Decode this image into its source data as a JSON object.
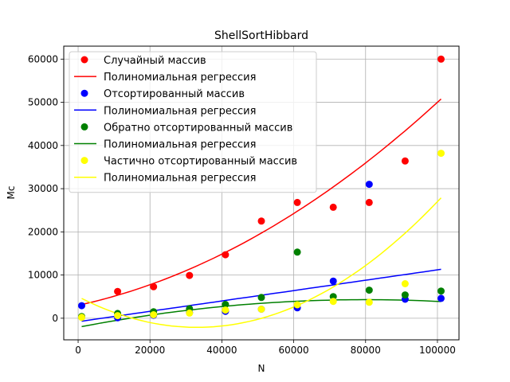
{
  "chart_data": {
    "type": "scatter",
    "title": "ShellSortHibbard",
    "xlabel": "N",
    "ylabel": "Мс",
    "xlim": [
      -4000,
      106000
    ],
    "ylim": [
      -5000,
      63000
    ],
    "xticks": [
      0,
      20000,
      40000,
      60000,
      80000,
      100000
    ],
    "xtick_labels": [
      "0",
      "20000",
      "40000",
      "60000",
      "80000",
      "100000"
    ],
    "yticks": [
      0,
      10000,
      20000,
      30000,
      40000,
      50000,
      60000
    ],
    "ytick_labels": [
      "0",
      "10000",
      "20000",
      "30000",
      "40000",
      "50000",
      "60000"
    ],
    "grid": true,
    "legend_position": "top-left",
    "x": [
      1000,
      11000,
      21000,
      31000,
      41000,
      51000,
      61000,
      71000,
      81000,
      91000,
      101000
    ],
    "series": [
      {
        "name": "Случайный массив",
        "color": "#ff0000",
        "values": [
          300,
          6200,
          7300,
          9900,
          14700,
          22500,
          26800,
          25700,
          26800,
          36400,
          60000
        ],
        "regression_name": "Полиномиальная регрессия",
        "regression_coef": [
          2.9e-06,
          0.18,
          3000
        ]
      },
      {
        "name": "Отсортированный массив",
        "color": "#0000ff",
        "values": [
          2900,
          100,
          700,
          1300,
          1600,
          2100,
          2400,
          8600,
          31000,
          4400,
          4600
        ],
        "regression_name": "Полиномиальная регрессия",
        "regression_coef": [
          0.0,
          0.12,
          -800
        ]
      },
      {
        "name": "Обратно отсортированный массив",
        "color": "#008000",
        "values": [
          400,
          1100,
          1500,
          2200,
          3200,
          4800,
          15300,
          5000,
          6500,
          5400,
          6300
        ],
        "regression_name": "Полиномиальная регрессия",
        "regression_coef": [
          -1e-06,
          0.16,
          -2100
        ]
      },
      {
        "name": "Частично отсортированный массив",
        "color": "#ffff00",
        "values": [
          200,
          600,
          800,
          1200,
          1900,
          2100,
          3100,
          3900,
          3700,
          8000,
          38200
        ],
        "regression_name": "Полиномиальная регрессия",
        "regression_coef": [
          6.5e-06,
          -0.43,
          5000
        ]
      }
    ]
  }
}
